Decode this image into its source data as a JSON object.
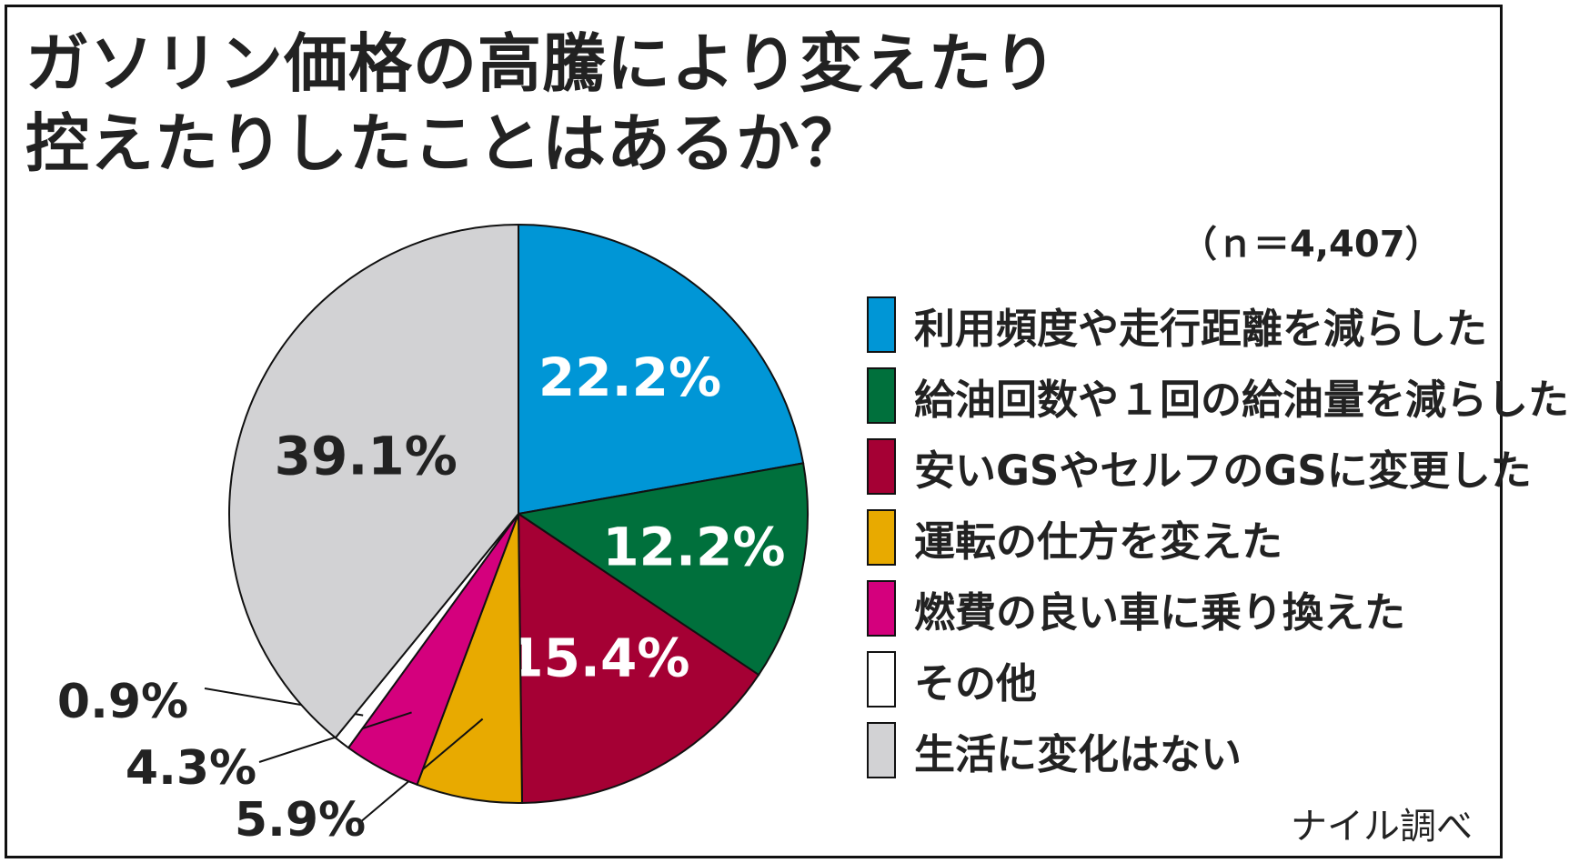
{
  "chart_data": {
    "type": "pie",
    "title_lines": [
      "ガソリン価格の高騰により変えたり",
      "控えたりしたことはあるか？"
    ],
    "sample_size": "（ｎ＝4,407）",
    "source": "ナイル調べ",
    "slices": [
      {
        "label": "利用頻度や走行距離を減らした",
        "value": 22.2,
        "value_label": "22.2%",
        "color": "#0096d6"
      },
      {
        "label": "給油回数や１回の給油量を減らした",
        "value": 12.2,
        "value_label": "12.2%",
        "color": "#00703c"
      },
      {
        "label": "安いGSやセルフのGSに変更した",
        "value": 15.4,
        "value_label": "15.4%",
        "color": "#a50034"
      },
      {
        "label": "運転の仕方を変えた",
        "value": 5.9,
        "value_label": "5.9%",
        "color": "#e8aa00"
      },
      {
        "label": "燃費の良い車に乗り換えた",
        "value": 4.3,
        "value_label": "4.3%",
        "color": "#d4007d"
      },
      {
        "label": "その他",
        "value": 0.9,
        "value_label": "0.9%",
        "color": "#ffffff"
      },
      {
        "label": "生活に変化はない",
        "value": 39.1,
        "value_label": "39.1%",
        "color": "#d2d2d4"
      }
    ],
    "legend_placement": "right"
  }
}
